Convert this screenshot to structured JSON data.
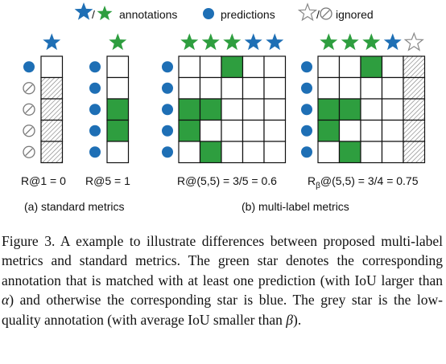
{
  "legend": {
    "annotations": "annotations",
    "predictions": "predictions",
    "ignored": "ignored"
  },
  "colors": {
    "green": "#2e9e3f",
    "blue": "#1e6fb5",
    "grey": "#8c8c8c"
  },
  "panels": {
    "r1": {
      "stars": [
        "blue"
      ],
      "markers": [
        "pred",
        "ignored",
        "ignored",
        "ignored",
        "ignored"
      ],
      "rows": [
        [
          "empty"
        ],
        [
          "hatch"
        ],
        [
          "hatch"
        ],
        [
          "hatch"
        ],
        [
          "hatch"
        ]
      ],
      "metric": "R@1 = 0"
    },
    "r5": {
      "stars": [
        "green"
      ],
      "markers": [
        "pred",
        "pred",
        "pred",
        "pred",
        "pred"
      ],
      "rows": [
        [
          "empty"
        ],
        [
          "empty"
        ],
        [
          "green"
        ],
        [
          "green"
        ],
        [
          "empty"
        ]
      ],
      "metric": "R@5 = 1"
    },
    "r55": {
      "stars": [
        "green",
        "green",
        "green",
        "blue",
        "blue"
      ],
      "markers": [
        "pred",
        "pred",
        "pred",
        "pred",
        "pred"
      ],
      "rows": [
        [
          "empty",
          "empty",
          "green",
          "empty",
          "empty"
        ],
        [
          "empty",
          "empty",
          "empty",
          "empty",
          "empty"
        ],
        [
          "green",
          "green",
          "empty",
          "empty",
          "empty"
        ],
        [
          "green",
          "empty",
          "empty",
          "empty",
          "empty"
        ],
        [
          "empty",
          "green",
          "empty",
          "empty",
          "empty"
        ]
      ],
      "metric": "R@(5,5) = 3/5 = 0.6"
    },
    "rb55": {
      "stars": [
        "green",
        "green",
        "green",
        "blue",
        "grey"
      ],
      "markers": [
        "pred",
        "pred",
        "pred",
        "pred",
        "pred"
      ],
      "rows": [
        [
          "empty",
          "empty",
          "green",
          "empty",
          "hatch"
        ],
        [
          "empty",
          "empty",
          "empty",
          "empty",
          "hatch"
        ],
        [
          "green",
          "green",
          "empty",
          "empty",
          "hatch"
        ],
        [
          "green",
          "empty",
          "empty",
          "empty",
          "hatch"
        ],
        [
          "empty",
          "green",
          "empty",
          "empty",
          "hatch"
        ]
      ],
      "metric_prefix": "R",
      "metric_sub": "β",
      "metric_rest": "@(5,5) = 3/4 = 0.75"
    }
  },
  "sublabels": {
    "a": "(a) standard metrics",
    "b": "(b) multi-label metrics"
  },
  "caption": {
    "part1": "Figure 3. A example to illustrate differences between proposed multi-label metrics and standard metrics. The green star denotes the corresponding annotation that is matched with at least one prediction (with IoU larger than ",
    "alpha": "α",
    "part2": ") and otherwise the corresponding star is blue. The grey star is the low-quality annotation (with average IoU smaller than ",
    "beta": "β",
    "part3": ")."
  }
}
